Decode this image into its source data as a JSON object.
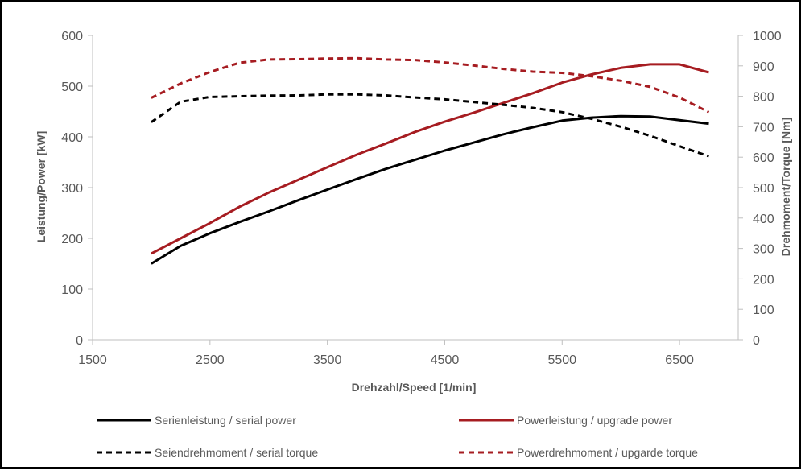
{
  "chart_data": {
    "type": "line",
    "xlabel": "Drehzahl/Speed [1/min]",
    "ylabel_left": "Leistung/Power [kW]",
    "ylabel_right": "Drehmoment/Torque [Nm]",
    "xlim": [
      1500,
      7000
    ],
    "ylim_left": [
      0,
      600
    ],
    "ylim_right": [
      0,
      1000
    ],
    "x_ticks": [
      "1500",
      "2500",
      "3500",
      "4500",
      "5500",
      "6500"
    ],
    "y_left_ticks": [
      "0",
      "100",
      "200",
      "300",
      "400",
      "500",
      "600"
    ],
    "y_right_ticks": [
      "0",
      "100",
      "200",
      "300",
      "400",
      "500",
      "600",
      "700",
      "800",
      "900",
      "1000"
    ],
    "grid": false,
    "legend_position": "bottom",
    "colors": {
      "serial": "#000000",
      "upgrade": "#a61c21",
      "axis": "#bfbfbf"
    },
    "series": [
      {
        "name": "Serienleistung / serial power",
        "axis": "left",
        "style": "solid",
        "color": "#000000",
        "x": [
          2000,
          2250,
          2500,
          2750,
          3000,
          3250,
          3500,
          3750,
          4000,
          4250,
          4500,
          4750,
          5000,
          5250,
          5500,
          5750,
          6000,
          6250,
          6500,
          6750
        ],
        "y": [
          150,
          185,
          210,
          232,
          253,
          275,
          296,
          317,
          337,
          355,
          373,
          389,
          405,
          419,
          432,
          438,
          441,
          440,
          433,
          426
        ]
      },
      {
        "name": "Powerleistung / upgrade power",
        "axis": "left",
        "style": "solid",
        "color": "#a61c21",
        "x": [
          2000,
          2250,
          2500,
          2750,
          3000,
          3250,
          3500,
          3750,
          4000,
          4250,
          4500,
          4750,
          5000,
          5250,
          5500,
          5750,
          6000,
          6250,
          6500,
          6750
        ],
        "y": [
          170,
          200,
          230,
          262,
          290,
          315,
          340,
          365,
          387,
          410,
          430,
          448,
          467,
          486,
          507,
          523,
          536,
          543,
          543,
          527
        ]
      },
      {
        "name": "Seiendrehmoment / serial torque",
        "axis": "right",
        "style": "dashed",
        "color": "#000000",
        "x": [
          2000,
          2250,
          2500,
          2750,
          3000,
          3250,
          3500,
          3750,
          4000,
          4250,
          4500,
          4750,
          5000,
          5250,
          5500,
          5750,
          6000,
          6250,
          6500,
          6750
        ],
        "y": [
          715,
          782,
          798,
          800,
          802,
          803,
          806,
          806,
          803,
          796,
          790,
          781,
          772,
          762,
          748,
          726,
          700,
          670,
          636,
          603
        ]
      },
      {
        "name": "Powerdrehmoment / upgarde torque",
        "axis": "right",
        "style": "dashed",
        "color": "#a61c21",
        "x": [
          2000,
          2250,
          2500,
          2750,
          3000,
          3250,
          3500,
          3750,
          4000,
          4250,
          4500,
          4750,
          5000,
          5250,
          5500,
          5750,
          6000,
          6250,
          6500,
          6750
        ],
        "y": [
          795,
          842,
          880,
          910,
          921,
          922,
          924,
          925,
          921,
          919,
          911,
          901,
          890,
          881,
          877,
          866,
          851,
          831,
          796,
          748
        ]
      }
    ]
  }
}
